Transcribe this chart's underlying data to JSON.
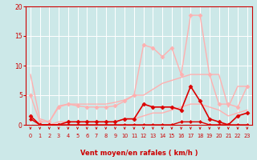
{
  "xlabel": "Vent moyen/en rafales ( km/h )",
  "xlim": [
    -0.5,
    23.5
  ],
  "ylim": [
    0,
    20
  ],
  "yticks": [
    0,
    5,
    10,
    15,
    20
  ],
  "xticks": [
    0,
    1,
    2,
    3,
    4,
    5,
    6,
    7,
    8,
    9,
    10,
    11,
    12,
    13,
    14,
    15,
    16,
    17,
    18,
    19,
    20,
    21,
    22,
    23
  ],
  "bg_color": "#cce8e8",
  "grid_color": "#ffffff",
  "series": [
    {
      "x": [
        0,
        1,
        2,
        3,
        4,
        5,
        6,
        7,
        8,
        9,
        10,
        11,
        12,
        13,
        14,
        15,
        16,
        17,
        18,
        19,
        20,
        21,
        22,
        23
      ],
      "y": [
        8.5,
        1.0,
        0.5,
        3.2,
        3.5,
        3.5,
        3.5,
        3.5,
        3.5,
        3.8,
        4.2,
        5.0,
        5.0,
        6.0,
        7.0,
        7.5,
        8.0,
        8.5,
        8.5,
        8.5,
        8.5,
        3.0,
        6.5,
        6.5
      ],
      "color": "#ffb0b0",
      "lw": 1.0,
      "marker": null,
      "zorder": 2
    },
    {
      "x": [
        0,
        1,
        2,
        3,
        4,
        5,
        6,
        7,
        8,
        9,
        10,
        11,
        12,
        13,
        14,
        15,
        16,
        17,
        18,
        19,
        20,
        21,
        22,
        23
      ],
      "y": [
        5.0,
        0.5,
        0.5,
        3.0,
        3.5,
        3.2,
        3.0,
        3.0,
        3.0,
        3.2,
        4.0,
        5.0,
        13.5,
        13.0,
        11.5,
        13.0,
        8.5,
        18.5,
        18.5,
        8.5,
        3.5,
        3.5,
        3.0,
        6.5
      ],
      "color": "#ffb0b0",
      "lw": 1.0,
      "marker": "D",
      "ms": 2.5,
      "zorder": 3
    },
    {
      "x": [
        0,
        1,
        2,
        3,
        4,
        5,
        6,
        7,
        8,
        9,
        10,
        11,
        12,
        13,
        14,
        15,
        16,
        17,
        18,
        19,
        20,
        21,
        22,
        23
      ],
      "y": [
        1.5,
        0.0,
        0.0,
        0.5,
        0.5,
        0.5,
        0.5,
        0.5,
        0.5,
        0.5,
        1.0,
        1.0,
        1.5,
        2.0,
        2.0,
        2.5,
        3.0,
        3.5,
        3.5,
        3.0,
        2.5,
        1.5,
        2.0,
        2.5
      ],
      "color": "#ffb0b0",
      "lw": 1.0,
      "marker": null,
      "zorder": 2
    },
    {
      "x": [
        0,
        1,
        2,
        3,
        4,
        5,
        6,
        7,
        8,
        9,
        10,
        11,
        12,
        13,
        14,
        15,
        16,
        17,
        18,
        19,
        20,
        21,
        22,
        23
      ],
      "y": [
        1.5,
        0.0,
        0.0,
        0.0,
        0.5,
        0.5,
        0.5,
        0.5,
        0.5,
        0.5,
        1.0,
        1.0,
        3.5,
        3.0,
        3.0,
        3.0,
        2.5,
        6.5,
        4.0,
        1.0,
        0.5,
        0.0,
        1.5,
        2.0
      ],
      "color": "#dd0000",
      "lw": 1.2,
      "marker": "D",
      "ms": 2.5,
      "zorder": 5
    },
    {
      "x": [
        0,
        1,
        2,
        3,
        4,
        5,
        6,
        7,
        8,
        9,
        10,
        11,
        12,
        13,
        14,
        15,
        16,
        17,
        18,
        19,
        20,
        21,
        22,
        23
      ],
      "y": [
        1.0,
        0.0,
        0.0,
        0.0,
        0.0,
        0.0,
        0.0,
        0.0,
        0.0,
        0.0,
        0.0,
        0.0,
        0.0,
        0.0,
        0.0,
        0.0,
        0.5,
        0.5,
        0.5,
        0.0,
        0.0,
        0.0,
        0.0,
        0.0
      ],
      "color": "#dd0000",
      "lw": 1.0,
      "marker": "D",
      "ms": 2.0,
      "zorder": 5
    }
  ],
  "arrow_color": "#cc0000",
  "arrows_x": [
    0,
    1,
    2,
    3,
    4,
    5,
    6,
    7,
    8,
    9,
    10,
    11,
    12,
    13,
    14,
    15,
    16,
    17,
    18,
    19,
    20,
    21,
    22,
    23
  ]
}
